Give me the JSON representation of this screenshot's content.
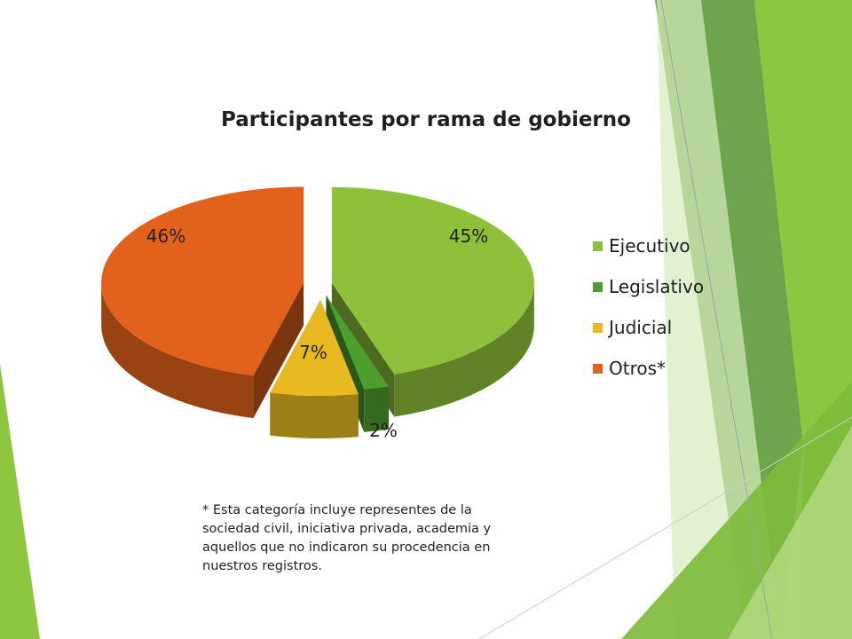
{
  "theme": {
    "green_light": "#8dc63f",
    "green_dark": "#4e8c32",
    "green_pale": "#d6ebbc"
  },
  "chart_data": {
    "type": "pie",
    "title": "Participantes por rama de gobierno",
    "legend_position": "right",
    "three_d": true,
    "exploded": true,
    "slices": [
      {
        "label": "Ejecutivo",
        "value": 45,
        "display": "45%",
        "color": "#8ec03a"
      },
      {
        "label": "Legislativo",
        "value": 2,
        "display": "2%",
        "color": "#4c9e2e"
      },
      {
        "label": "Judicial",
        "value": 7,
        "display": "7%",
        "color": "#e8b921"
      },
      {
        "label": "Otros*",
        "value": 46,
        "display": "46%",
        "color": "#e2621b"
      }
    ]
  },
  "footnote": "* Esta categoría incluye representes de la sociedad civil, iniciativa privada, academia y aquellos que no indicaron su procedencia en nuestros registros."
}
